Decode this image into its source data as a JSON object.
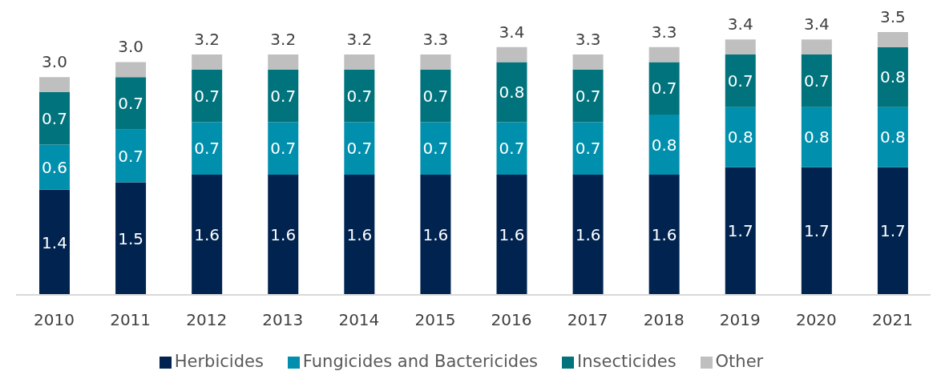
{
  "chart_data": {
    "type": "bar",
    "stacked": true,
    "categories": [
      "2010",
      "2011",
      "2012",
      "2013",
      "2014",
      "2015",
      "2016",
      "2017",
      "2018",
      "2019",
      "2020",
      "2021"
    ],
    "series": [
      {
        "name": "Herbicides",
        "color": "#00234f",
        "values": [
          1.4,
          1.5,
          1.6,
          1.6,
          1.6,
          1.6,
          1.6,
          1.6,
          1.6,
          1.7,
          1.7,
          1.7
        ],
        "value_labels": [
          "1.4",
          "1.5",
          "1.6",
          "1.6",
          "1.6",
          "1.6",
          "1.6",
          "1.6",
          "1.6",
          "1.7",
          "1.7",
          "1.7"
        ]
      },
      {
        "name": "Fungicides and Bactericides",
        "color": "#008fac",
        "values": [
          0.6,
          0.7,
          0.7,
          0.7,
          0.7,
          0.7,
          0.7,
          0.7,
          0.8,
          0.8,
          0.8,
          0.8
        ],
        "value_labels": [
          "0.6",
          "0.7",
          "0.7",
          "0.7",
          "0.7",
          "0.7",
          "0.7",
          "0.7",
          "0.8",
          "0.8",
          "0.8",
          "0.8"
        ]
      },
      {
        "name": "Insecticides",
        "color": "#00737c",
        "values": [
          0.7,
          0.7,
          0.7,
          0.7,
          0.7,
          0.7,
          0.8,
          0.7,
          0.7,
          0.7,
          0.7,
          0.8
        ],
        "value_labels": [
          "0.7",
          "0.7",
          "0.7",
          "0.7",
          "0.7",
          "0.7",
          "0.8",
          "0.7",
          "0.7",
          "0.7",
          "0.7",
          "0.8"
        ]
      },
      {
        "name": "Other",
        "color": "#bfbfbf",
        "values": [
          0.2,
          0.2,
          0.2,
          0.2,
          0.2,
          0.2,
          0.2,
          0.2,
          0.2,
          0.2,
          0.2,
          0.2
        ]
      }
    ],
    "totals": [
      "3.0",
      "3.0",
      "3.2",
      "3.2",
      "3.2",
      "3.3",
      "3.4",
      "3.3",
      "3.3",
      "3.4",
      "3.4",
      "3.5"
    ],
    "legend": "bottom"
  }
}
